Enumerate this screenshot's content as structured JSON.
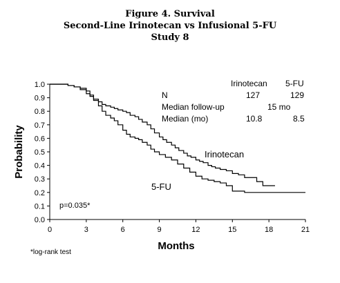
{
  "header": {
    "line1": "Figure 4. Survival",
    "line2": "Second-Line Irinotecan vs Infusional 5-FU",
    "line3": "Study 8"
  },
  "table": {
    "col1": "Irinotecan",
    "col2": "5-FU",
    "rows": [
      {
        "label": "N",
        "v1": "127",
        "v2": "129",
        "span": ""
      },
      {
        "label": "Median follow-up",
        "v1": "",
        "v2": "",
        "span": "15 mo"
      },
      {
        "label": "Median (mo)",
        "v1": "10.8",
        "v2": "8.5",
        "span": ""
      }
    ]
  },
  "annotations": {
    "pvalue": "p=0.035*",
    "footnote": "*log-rank test",
    "irinotecan_label": "Irinotecan",
    "fu_label": "5-FU"
  },
  "chart_data": {
    "type": "line",
    "step": true,
    "xlabel": "Months",
    "ylabel": "Probability",
    "xlim": [
      0,
      21
    ],
    "ylim": [
      0,
      1.0
    ],
    "xticks": [
      "0",
      "3",
      "6",
      "9",
      "12",
      "15",
      "18",
      "21"
    ],
    "yticks": [
      "0.0",
      "0.1",
      "0.2",
      "0.3",
      "0.4",
      "0.5",
      "0.6",
      "0.7",
      "0.8",
      "0.9",
      "1.0"
    ],
    "series": [
      {
        "name": "Irinotecan",
        "color": "#000000",
        "x": [
          0,
          1,
          1.5,
          2,
          2.5,
          3,
          3.3,
          3.6,
          4,
          4.3,
          4.6,
          5,
          5.3,
          5.6,
          6,
          6.3,
          6.6,
          7,
          7.3,
          7.6,
          8,
          8.3,
          8.6,
          9,
          9.3,
          9.6,
          10,
          10.3,
          10.6,
          11,
          11.3,
          11.6,
          12,
          12.3,
          12.6,
          13,
          13.3,
          13.6,
          14,
          14.5,
          15,
          15.5,
          16,
          17,
          17.5,
          18.5
        ],
        "y": [
          1.0,
          1.0,
          0.99,
          0.98,
          0.96,
          0.93,
          0.91,
          0.89,
          0.87,
          0.85,
          0.84,
          0.83,
          0.82,
          0.81,
          0.8,
          0.79,
          0.77,
          0.76,
          0.74,
          0.72,
          0.7,
          0.67,
          0.64,
          0.61,
          0.59,
          0.57,
          0.55,
          0.53,
          0.51,
          0.49,
          0.47,
          0.46,
          0.44,
          0.43,
          0.42,
          0.4,
          0.39,
          0.38,
          0.37,
          0.36,
          0.34,
          0.33,
          0.31,
          0.28,
          0.25,
          0.25
        ]
      },
      {
        "name": "5-FU",
        "color": "#000000",
        "x": [
          0,
          1,
          1.5,
          2,
          2.5,
          3,
          3.3,
          3.6,
          4,
          4.3,
          4.6,
          5,
          5.3,
          5.6,
          6,
          6.3,
          6.6,
          7,
          7.3,
          7.6,
          8,
          8.3,
          8.6,
          9,
          9.5,
          10,
          10.5,
          11,
          11.5,
          12,
          12.5,
          13,
          13.5,
          14,
          14.5,
          15,
          16,
          17,
          18,
          19,
          21
        ],
        "y": [
          1.0,
          1.0,
          0.99,
          0.98,
          0.97,
          0.95,
          0.92,
          0.88,
          0.84,
          0.8,
          0.77,
          0.75,
          0.73,
          0.7,
          0.66,
          0.63,
          0.61,
          0.6,
          0.59,
          0.57,
          0.55,
          0.52,
          0.5,
          0.48,
          0.46,
          0.44,
          0.41,
          0.38,
          0.35,
          0.32,
          0.3,
          0.29,
          0.28,
          0.27,
          0.25,
          0.21,
          0.2,
          0.2,
          0.2,
          0.2,
          0.2
        ]
      }
    ]
  }
}
